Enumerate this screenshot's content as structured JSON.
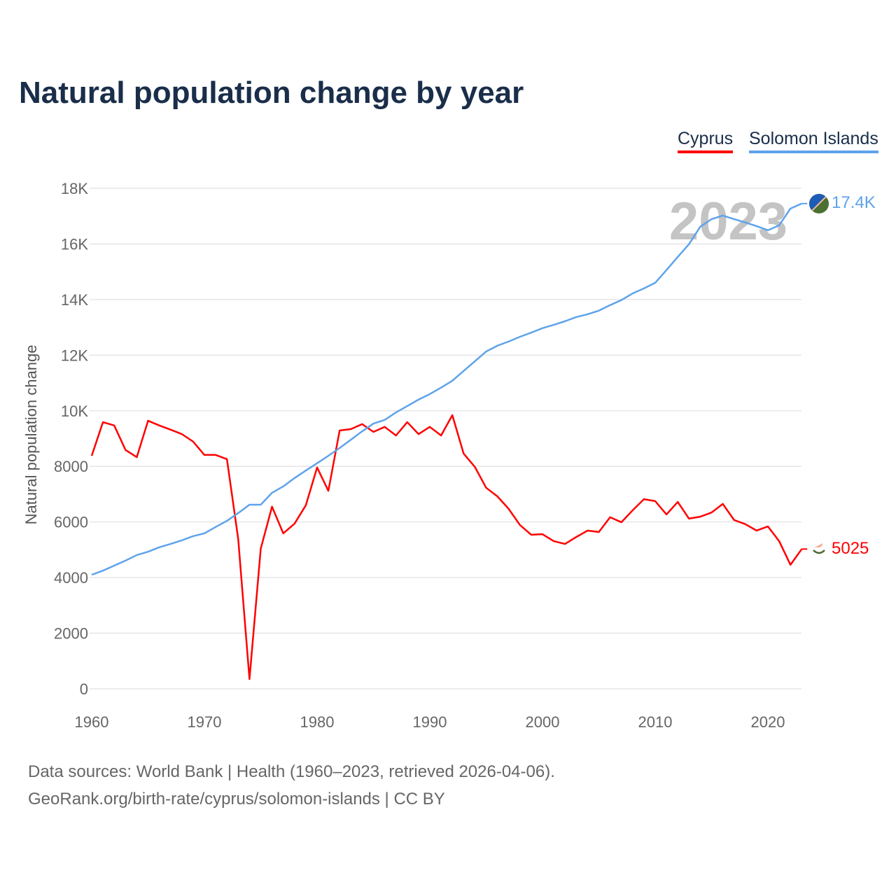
{
  "chart_data": {
    "type": "line",
    "title": "Natural population change by year",
    "xlabel": "",
    "ylabel": "Natural population change",
    "xlim": [
      1960,
      2023
    ],
    "ylim": [
      0,
      18000
    ],
    "yticks": [
      0,
      2000,
      4000,
      6000,
      8000,
      10000,
      12000,
      14000,
      16000,
      18000
    ],
    "ytick_labels": [
      "0",
      "2000",
      "4000",
      "6000",
      "8000",
      "10K",
      "12K",
      "14K",
      "16K",
      "18K"
    ],
    "xticks": [
      1960,
      1970,
      1980,
      1990,
      2000,
      2010,
      2020
    ],
    "xtick_labels": [
      "1960",
      "1970",
      "1980",
      "1990",
      "2000",
      "2010",
      "2020"
    ],
    "grid": true,
    "legend_position": "top-right",
    "year_watermark": "2023",
    "x_start": 1960,
    "series": [
      {
        "name": "Cyprus",
        "color": "#ff0000",
        "end_label": "5025",
        "values": [
          8380,
          9590,
          9470,
          8590,
          8330,
          9640,
          9470,
          9320,
          9160,
          8890,
          8410,
          8410,
          8260,
          5390,
          350,
          5040,
          6550,
          5590,
          5940,
          6600,
          7960,
          7120,
          9290,
          9340,
          9520,
          9240,
          9420,
          9110,
          9590,
          9160,
          9420,
          9110,
          9840,
          8460,
          7980,
          7230,
          6920,
          6470,
          5890,
          5540,
          5560,
          5310,
          5210,
          5460,
          5690,
          5640,
          6170,
          5990,
          6420,
          6820,
          6750,
          6270,
          6720,
          6120,
          6190,
          6340,
          6650,
          6070,
          5920,
          5690,
          5840,
          5310,
          4460,
          5025
        ]
      },
      {
        "name": "Solomon Islands",
        "color": "#5ea3ea",
        "end_label": "17.4K",
        "values": [
          4100,
          4250,
          4430,
          4610,
          4810,
          4930,
          5090,
          5210,
          5340,
          5490,
          5590,
          5820,
          6040,
          6320,
          6620,
          6620,
          7050,
          7280,
          7580,
          7850,
          8110,
          8380,
          8660,
          8960,
          9260,
          9540,
          9670,
          9940,
          10170,
          10400,
          10600,
          10830,
          11080,
          11430,
          11780,
          12130,
          12340,
          12490,
          12660,
          12810,
          12970,
          13090,
          13220,
          13370,
          13470,
          13600,
          13800,
          13980,
          14220,
          14400,
          14600,
          15060,
          15530,
          15990,
          16620,
          16890,
          17020,
          16890,
          16770,
          16640,
          16490,
          16670,
          17270,
          17450
        ]
      }
    ]
  },
  "footer": {
    "sources": "Data sources: World Bank | Health (1960–2023, retrieved 2026-04-06).",
    "link": "GeoRank.org/birth-rate/cyprus/solomon-islands | CC BY"
  }
}
